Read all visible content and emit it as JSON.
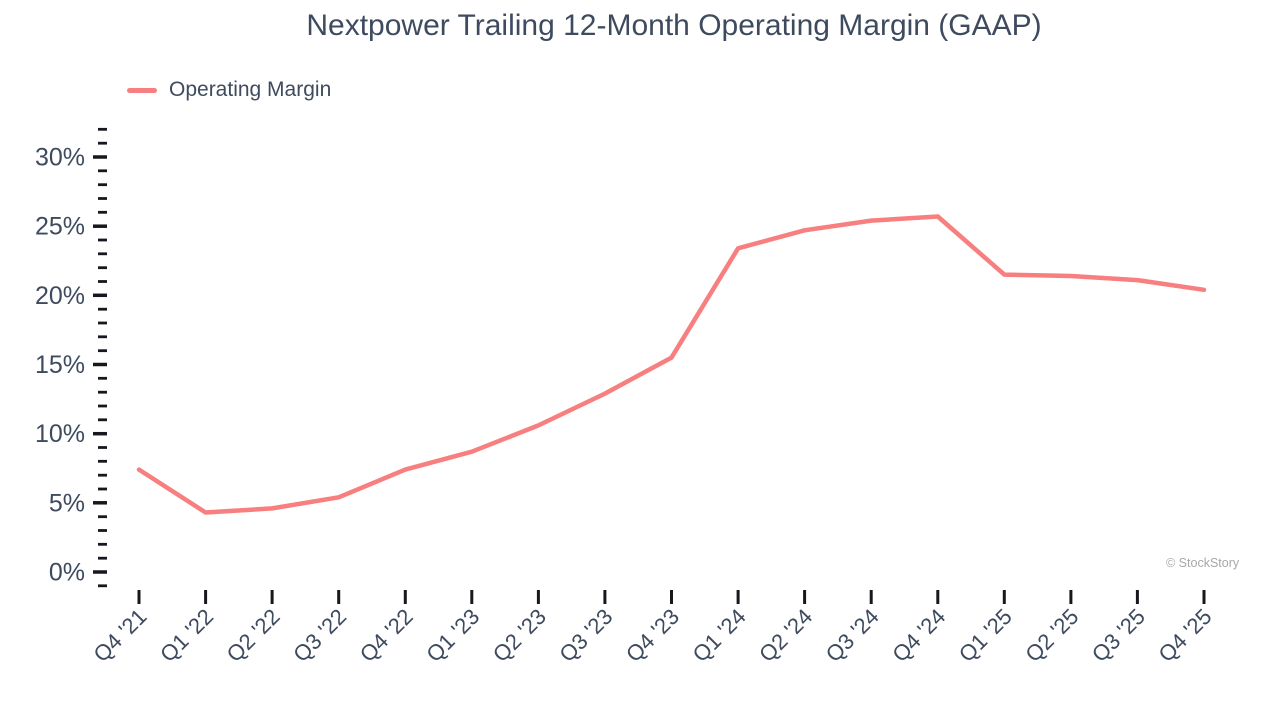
{
  "copyright": "© StockStory",
  "colors": {
    "text": "#3e4b5f",
    "tick": "#16181d",
    "line": "#f87f7f",
    "muted": "#a8a8a8",
    "bg": "#ffffff"
  },
  "chart_data": {
    "type": "line",
    "title": "Nextpower Trailing 12-Month Operating Margin (GAAP)",
    "categories": [
      "Q4 '21",
      "Q1 '22",
      "Q2 '22",
      "Q3 '22",
      "Q4 '22",
      "Q1 '23",
      "Q2 '23",
      "Q3 '23",
      "Q4 '23",
      "Q1 '24",
      "Q2 '24",
      "Q3 '24",
      "Q4 '24",
      "Q1 '25",
      "Q2 '25",
      "Q3 '25",
      "Q4 '25"
    ],
    "series": [
      {
        "name": "Operating Margin",
        "values": [
          7.4,
          4.3,
          4.6,
          5.4,
          7.4,
          8.7,
          10.6,
          12.9,
          15.5,
          23.4,
          24.7,
          25.4,
          25.7,
          21.5,
          21.4,
          21.1,
          20.4
        ]
      }
    ],
    "unit": "%",
    "xlabel": "",
    "ylabel": "",
    "y_major_ticks": [
      0,
      5,
      10,
      15,
      20,
      25,
      30
    ],
    "y_tick_labels": [
      "0%",
      "5%",
      "10%",
      "15%",
      "20%",
      "25%",
      "30%"
    ],
    "y_minor_step": 1,
    "ylim": [
      -1,
      32
    ],
    "grid": false,
    "markers": false,
    "legend_position": "top-left",
    "line_color": "#f87f7f"
  }
}
